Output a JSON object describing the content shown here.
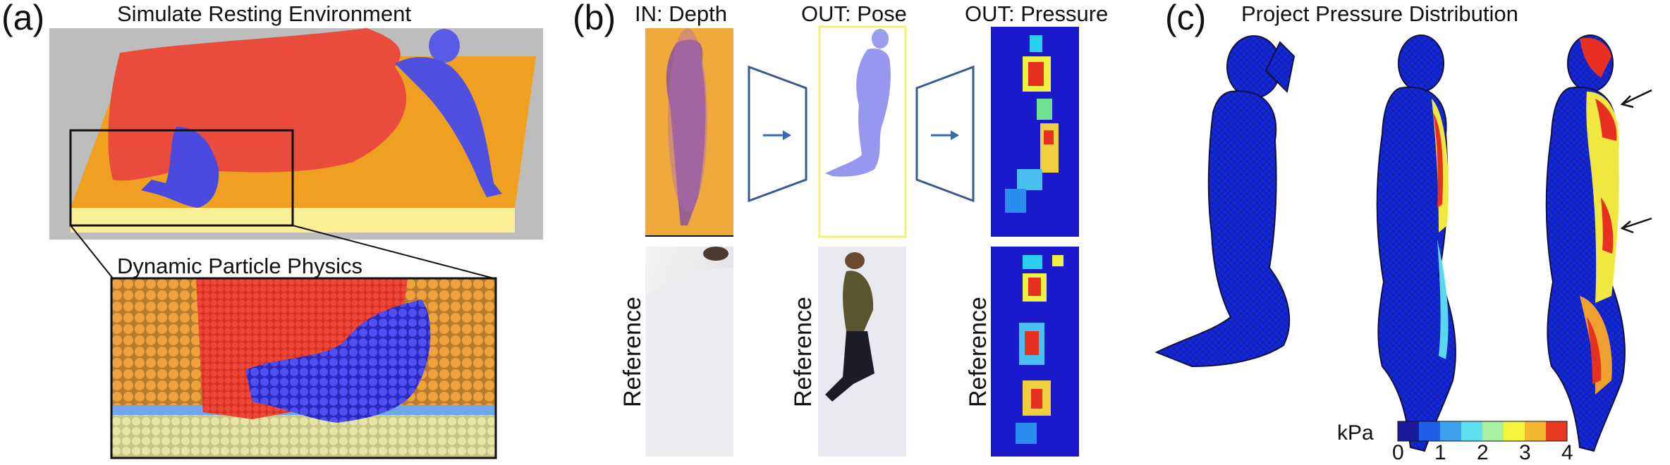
{
  "panel_a": {
    "label": "(a)",
    "title": "Simulate Resting Environment",
    "inset_title": "Dynamic Particle Physics"
  },
  "panel_b": {
    "label": "(b)",
    "col_depth": "IN: Depth",
    "col_pose": "OUT: Pose",
    "col_pressure": "OUT: Pressure",
    "reference_label": "Reference"
  },
  "panel_c": {
    "label": "(c)",
    "title": "Project Pressure Distribution",
    "colorbar": {
      "unit": "kPa",
      "ticks": [
        "0",
        "1",
        "2",
        "3",
        "4"
      ],
      "colors": [
        "#1a1a9c",
        "#1f5fe6",
        "#3fa0f0",
        "#5fe0f0",
        "#a8f0a0",
        "#f4f43a",
        "#f4b830",
        "#e83a20"
      ]
    }
  }
}
